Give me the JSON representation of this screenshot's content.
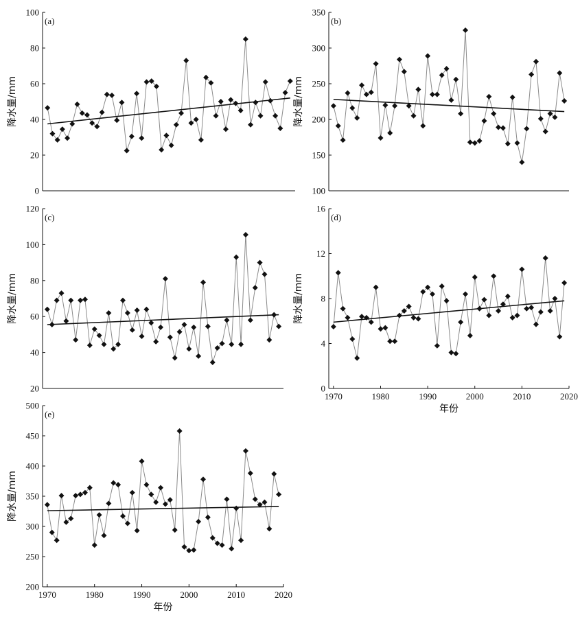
{
  "chart_data": [
    {
      "id": "a",
      "panel_label": "(a)",
      "type": "line",
      "ylabel": "降水量/mm",
      "xlabel": "",
      "ylim": [
        0,
        100
      ],
      "yticks": [
        0,
        20,
        40,
        60,
        80,
        100
      ],
      "xlim": [
        1969,
        2020
      ],
      "xticks": [],
      "xtick_labels": [],
      "x_start": 1970,
      "values": [
        46.5,
        32,
        28.5,
        34.5,
        29.5,
        37.5,
        48.5,
        43.5,
        42.5,
        38,
        36,
        44,
        54,
        53.5,
        39.5,
        49.5,
        22.5,
        30.5,
        54.5,
        29.5,
        61,
        61.5,
        58.5,
        23,
        31,
        25.5,
        37,
        43.5,
        73,
        38,
        40,
        28.5,
        63.5,
        60.5,
        42,
        50,
        34.5,
        51,
        49,
        45,
        85,
        37,
        49.5,
        42,
        61,
        50.5,
        42,
        35,
        55,
        61.5
      ],
      "trend": {
        "x": [
          1970,
          2019
        ],
        "y": [
          37.5,
          52
        ]
      }
    },
    {
      "id": "b",
      "panel_label": "(b)",
      "type": "line",
      "ylabel": "降水量/mm",
      "xlabel": "",
      "ylim": [
        100,
        350
      ],
      "yticks": [
        100,
        150,
        200,
        250,
        300,
        350
      ],
      "xlim": [
        1969,
        2020
      ],
      "xticks": [],
      "xtick_labels": [],
      "x_start": 1970,
      "values": [
        219,
        191,
        171,
        237,
        216,
        202,
        248,
        235,
        238,
        278,
        174,
        220,
        181,
        219,
        284,
        267,
        219,
        205,
        242,
        191,
        289,
        235,
        235,
        262,
        271,
        227,
        256,
        208,
        325,
        168,
        167,
        170,
        198,
        232,
        208,
        189,
        188,
        166,
        231,
        167,
        140,
        187,
        263,
        281,
        201,
        183,
        208,
        203,
        265,
        226
      ],
      "trend": {
        "x": [
          1970,
          2019
        ],
        "y": [
          228,
          211
        ]
      }
    },
    {
      "id": "c",
      "panel_label": "(c)",
      "type": "line",
      "ylabel": "降水量/mm",
      "xlabel": "",
      "ylim": [
        20,
        120
      ],
      "yticks": [
        20,
        40,
        60,
        80,
        100,
        120
      ],
      "xlim": [
        1969,
        2020
      ],
      "xticks": [],
      "xtick_labels": [],
      "x_start": 1970,
      "values": [
        64,
        55.5,
        69,
        73,
        57.5,
        69,
        47,
        69,
        69.5,
        44,
        53,
        49.5,
        44.5,
        62,
        42,
        44.5,
        69,
        62,
        52.5,
        63.5,
        49,
        64,
        56.5,
        46,
        54,
        81,
        48.5,
        37,
        51.5,
        55.5,
        42,
        54,
        38,
        79,
        54.5,
        34.5,
        42.5,
        45,
        58,
        44.5,
        93,
        44.5,
        105.5,
        58,
        76,
        90,
        83.5,
        47,
        61,
        54.5
      ],
      "trend": {
        "x": [
          1970,
          2019
        ],
        "y": [
          55.5,
          61
        ]
      }
    },
    {
      "id": "d",
      "panel_label": "(d)",
      "type": "line",
      "ylabel": "降水量/mm",
      "xlabel": "年份",
      "ylim": [
        0,
        16
      ],
      "yticks": [
        0,
        4,
        8,
        12,
        16
      ],
      "xlim": [
        1969,
        2020
      ],
      "xticks": [
        1970,
        1980,
        1990,
        2000,
        2010,
        2020
      ],
      "xtick_labels": [
        "1970",
        "1980",
        "1990",
        "2000",
        "2010",
        "2020"
      ],
      "x_start": 1970,
      "values": [
        5.5,
        10.3,
        7.1,
        6.3,
        4.4,
        2.7,
        6.4,
        6.3,
        5.9,
        9,
        5.3,
        5.4,
        4.2,
        4.2,
        6.5,
        6.9,
        7.3,
        6.3,
        6.2,
        8.6,
        9,
        8.4,
        3.8,
        9.1,
        7.8,
        3.2,
        3.1,
        5.9,
        8.4,
        4.7,
        9.9,
        7.1,
        7.9,
        6.5,
        10,
        6.9,
        7.5,
        8.2,
        6.3,
        6.5,
        10.6,
        7.1,
        7.2,
        5.7,
        6.8,
        11.6,
        6.9,
        8,
        4.6,
        9.4
      ],
      "trend": {
        "x": [
          1970,
          2019
        ],
        "y": [
          5.9,
          7.8
        ]
      }
    },
    {
      "id": "e",
      "panel_label": "(e)",
      "type": "line",
      "ylabel": "降水量/mm",
      "xlabel": "年份",
      "ylim": [
        200,
        500
      ],
      "yticks": [
        200,
        250,
        300,
        350,
        400,
        450,
        500
      ],
      "xlim": [
        1969,
        2020
      ],
      "xticks": [
        1970,
        1980,
        1990,
        2000,
        2010,
        2020
      ],
      "xtick_labels": [
        "1970",
        "1980",
        "1990",
        "2000",
        "2010",
        "2020"
      ],
      "x_start": 1970,
      "values": [
        336,
        290,
        277,
        351,
        307,
        313,
        351,
        353,
        356,
        364,
        269,
        319,
        285,
        338,
        372,
        369,
        317,
        305,
        356,
        293,
        408,
        369,
        353,
        340,
        364,
        337,
        344,
        294,
        458,
        266,
        260,
        261,
        308,
        378,
        315,
        281,
        272,
        269,
        345,
        263,
        330,
        277,
        425,
        388,
        345,
        336,
        340,
        296,
        387,
        353
      ],
      "trend": {
        "x": [
          1970,
          2019
        ],
        "y": [
          326,
          333
        ]
      }
    }
  ]
}
